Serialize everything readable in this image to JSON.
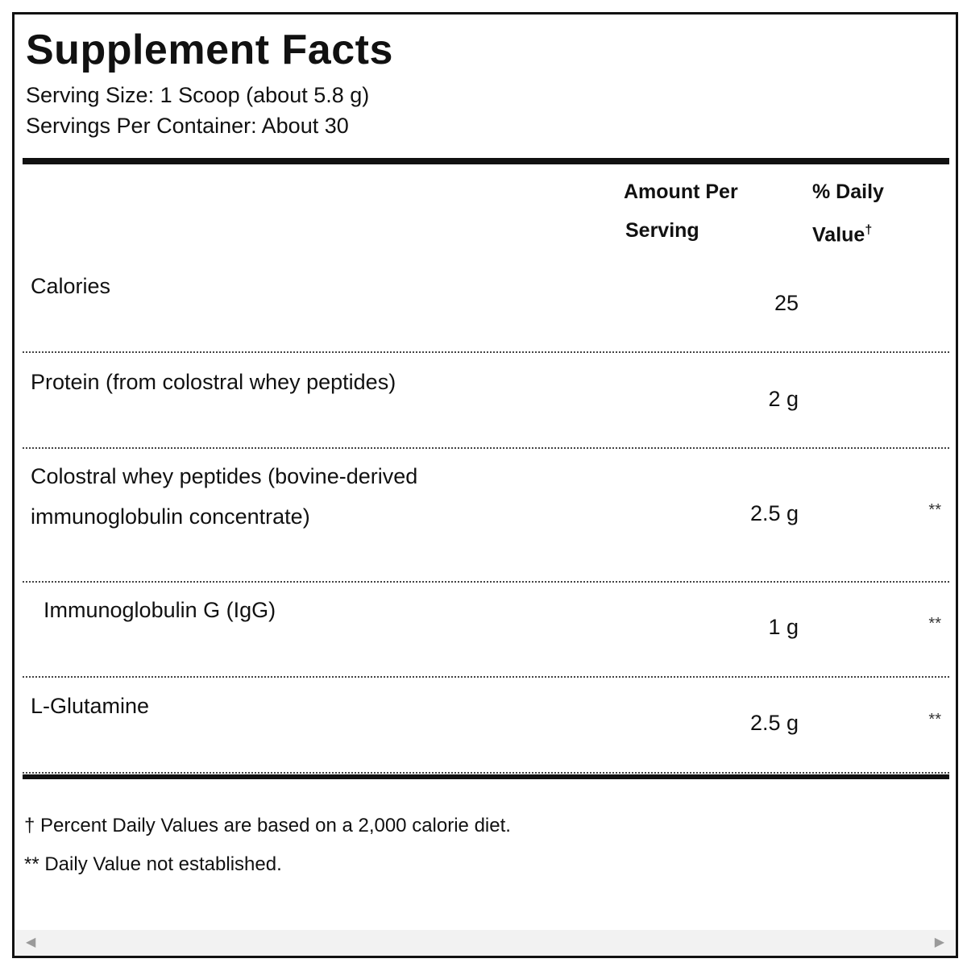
{
  "label": {
    "title": "Supplement Facts",
    "serving_size": "Serving Size: 1 Scoop (about 5.8 g)",
    "servings_per_container": "Servings Per Container: About 30"
  },
  "table": {
    "headers": {
      "amount_line1": "Amount Per",
      "amount_line2": "Serving",
      "dv_line1": "% Daily",
      "dv_line2": "Value",
      "dv_mark": "†"
    },
    "rows": [
      {
        "name_line1": "Calories",
        "name_line2": "",
        "amount": "25",
        "dv": ""
      },
      {
        "name_line1": "Protein (from colostral whey peptides)",
        "name_line2": "",
        "amount": "2 g",
        "dv": ""
      },
      {
        "name_line1": "Colostral whey peptides (bovine-derived",
        "name_line2": "immunoglobulin concentrate)",
        "amount": "2.5 g",
        "dv": "**"
      },
      {
        "name_line1": "Immunoglobulin G (IgG)",
        "name_line2": "",
        "amount": "1 g",
        "dv": "**"
      },
      {
        "name_line1": "L-Glutamine",
        "name_line2": "",
        "amount": "2.5 g",
        "dv": "**"
      }
    ]
  },
  "footnotes": {
    "dagger": "† Percent Daily Values are based on a 2,000 calorie diet.",
    "double_star": "** Daily Value not established."
  },
  "scrollbar": {
    "left_arrow": "◀",
    "right_arrow": "▶"
  }
}
